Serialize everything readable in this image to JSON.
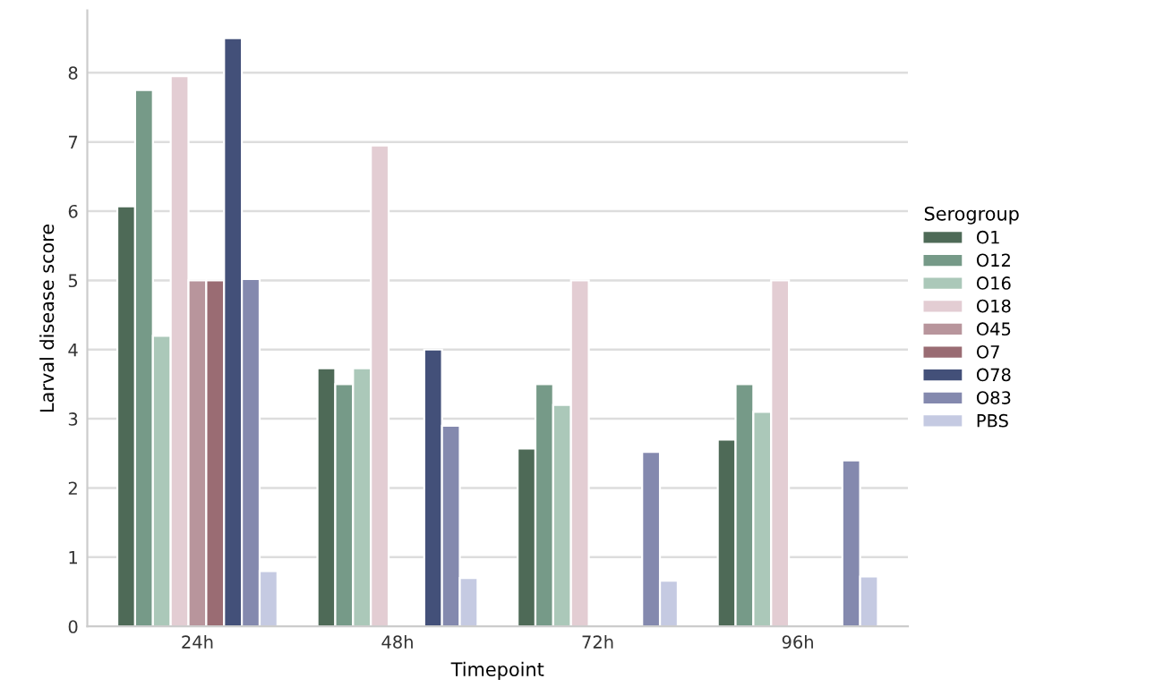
{
  "chart_data": {
    "type": "bar",
    "xlabel": "Timepoint",
    "ylabel": "Larval disease score",
    "legend_title": "Serogroup",
    "categories": [
      "24h",
      "48h",
      "72h",
      "96h"
    ],
    "series": [
      {
        "name": "O1",
        "color": "#4e6a57",
        "values": [
          6.07,
          3.73,
          2.57,
          2.7
        ]
      },
      {
        "name": "O12",
        "color": "#769a88",
        "values": [
          7.75,
          3.5,
          3.5,
          3.5
        ]
      },
      {
        "name": "O16",
        "color": "#abc8b9",
        "values": [
          4.2,
          3.73,
          3.2,
          3.1
        ]
      },
      {
        "name": "O18",
        "color": "#e3cdd3",
        "values": [
          7.95,
          6.95,
          5.0,
          5.0
        ]
      },
      {
        "name": "O45",
        "color": "#b8959c",
        "values": [
          5.0,
          null,
          null,
          null
        ]
      },
      {
        "name": "O7",
        "color": "#9a6c73",
        "values": [
          5.0,
          null,
          null,
          null
        ]
      },
      {
        "name": "O78",
        "color": "#435079",
        "values": [
          8.5,
          4.0,
          null,
          null
        ]
      },
      {
        "name": "O83",
        "color": "#8489ae",
        "values": [
          5.02,
          2.9,
          2.52,
          2.4
        ]
      },
      {
        "name": "PBS",
        "color": "#c5cae2",
        "values": [
          0.8,
          0.7,
          0.66,
          0.72
        ]
      }
    ],
    "ylim": [
      0,
      8.9
    ],
    "yticks": [
      0,
      1,
      2,
      3,
      4,
      5,
      6,
      7,
      8
    ],
    "grid": "y",
    "legend": "right"
  }
}
